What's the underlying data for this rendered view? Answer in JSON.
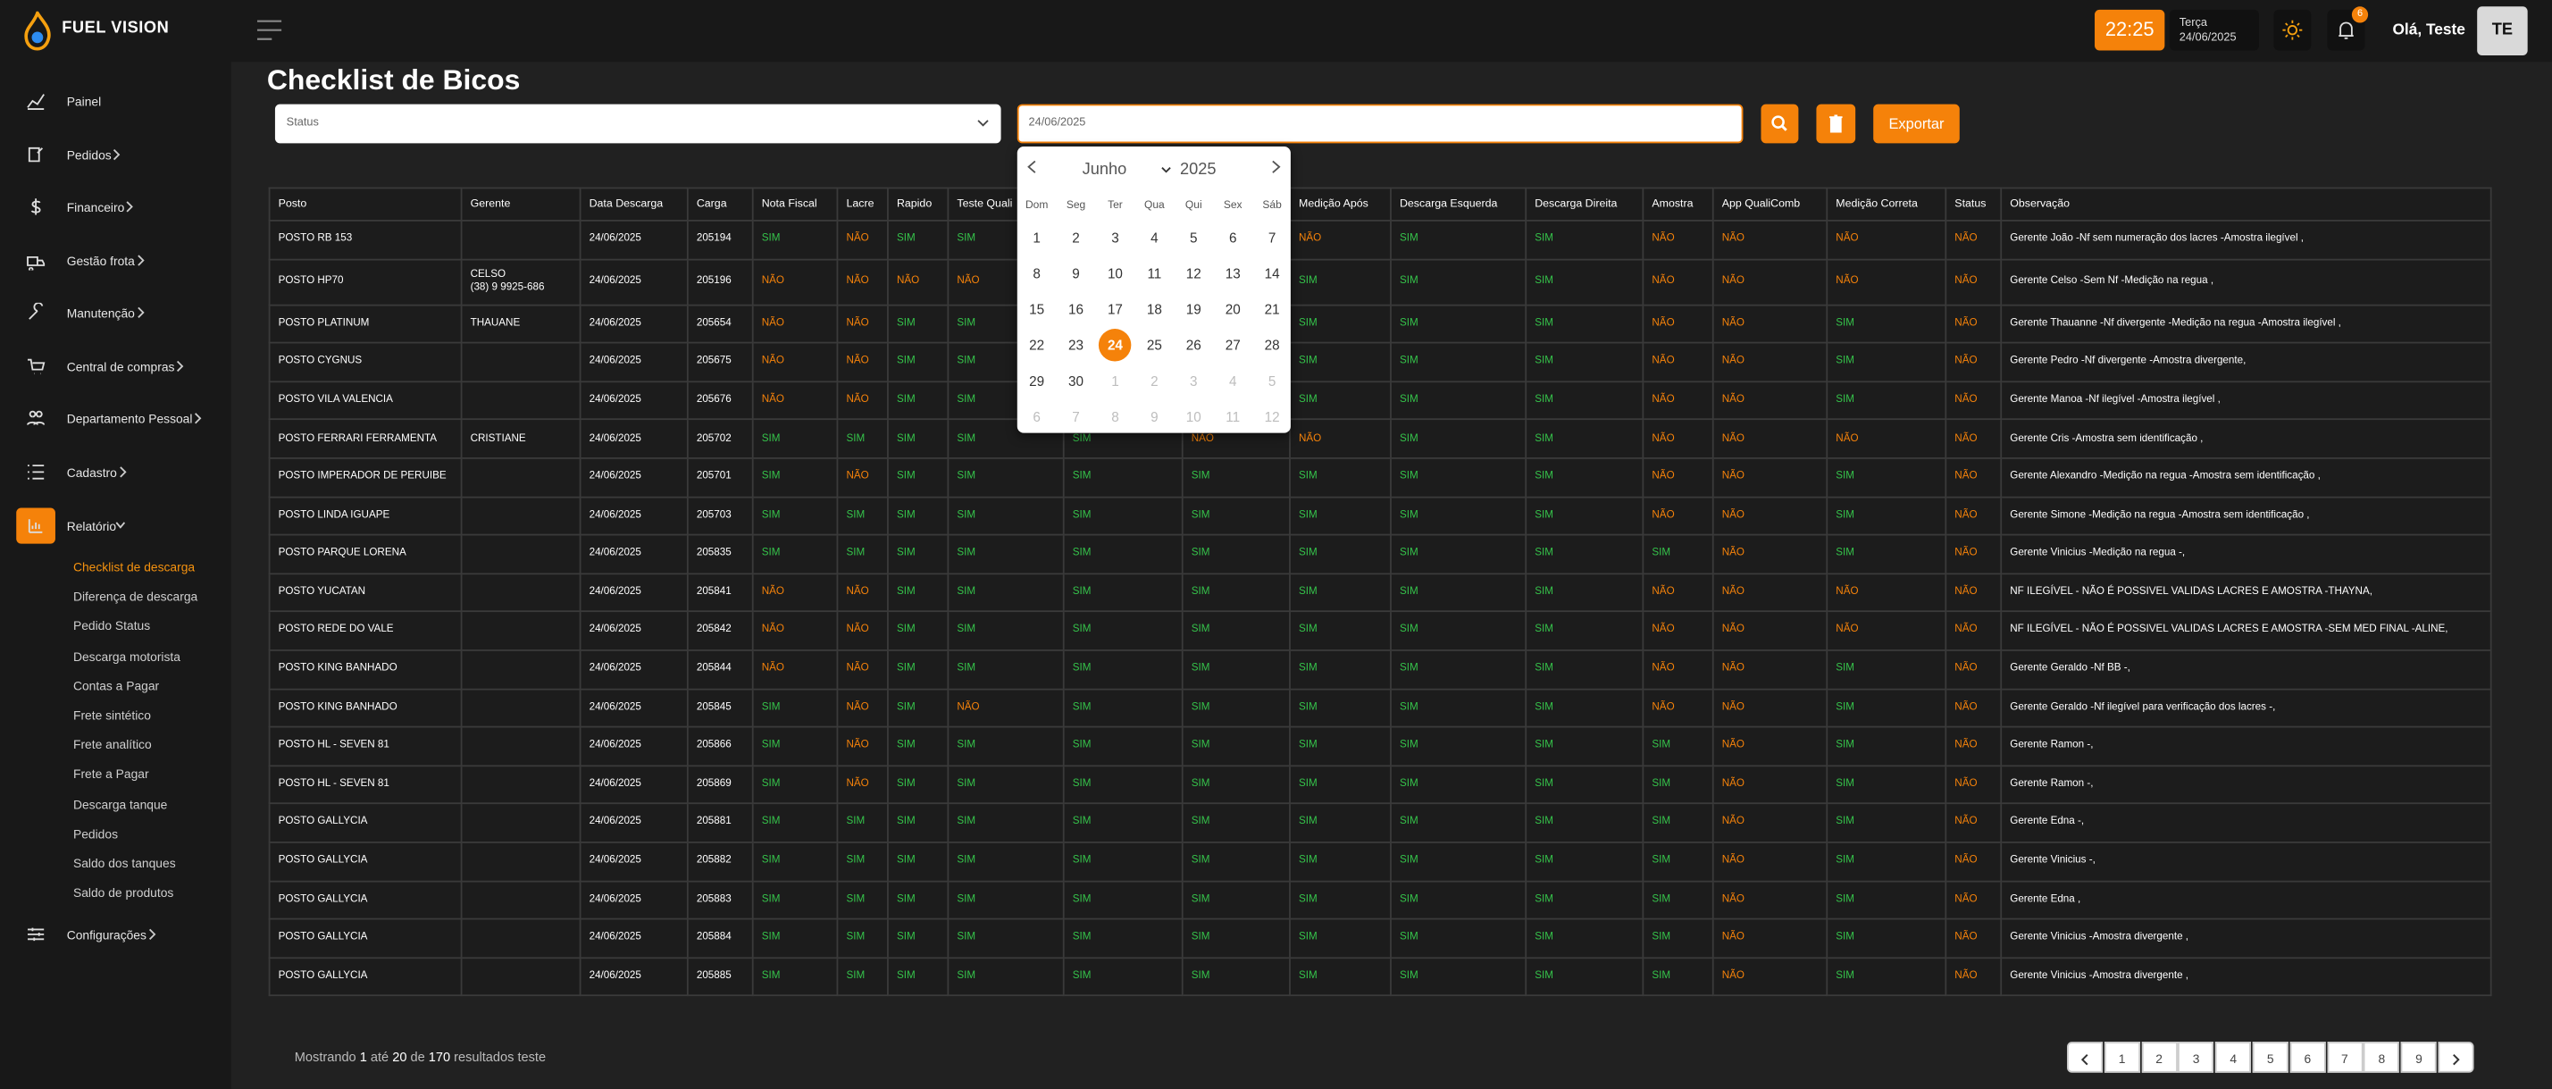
{
  "brand": "FUEL VISION",
  "header": {
    "time": "22:25",
    "weekday": "Terça",
    "date": "24/06/2025",
    "notifications": "6",
    "greeting": "Olá, Teste",
    "avatar": "TE"
  },
  "sidebar": {
    "items": [
      {
        "label": "Painel",
        "expandable": false
      },
      {
        "label": "Pedidos",
        "expandable": true
      },
      {
        "label": "Financeiro",
        "expandable": true
      },
      {
        "label": "Gestão frota",
        "expandable": true
      },
      {
        "label": "Manutenção",
        "expandable": true
      },
      {
        "label": "Central de compras",
        "expandable": true
      },
      {
        "label": "Departamento Pessoal",
        "expandable": true
      },
      {
        "label": "Cadastro",
        "expandable": true
      },
      {
        "label": "Relatório",
        "expandable": true,
        "active": true
      }
    ],
    "submenu": [
      {
        "label": "Checklist de descarga",
        "active": true
      },
      {
        "label": "Diferença de descarga"
      },
      {
        "label": "Pedido Status"
      },
      {
        "label": "Descarga motorista"
      },
      {
        "label": "Contas a Pagar"
      },
      {
        "label": "Frete sintético"
      },
      {
        "label": "Frete analítico"
      },
      {
        "label": "Frete a Pagar"
      },
      {
        "label": "Descarga tanque"
      },
      {
        "label": "Pedidos"
      },
      {
        "label": "Saldo dos tanques"
      },
      {
        "label": "Saldo de produtos"
      }
    ],
    "settings": "Configurações"
  },
  "page_title": "Checklist de Bicos",
  "filters": {
    "status_placeholder": "Status",
    "date": "24/06/2025",
    "export": "Exportar"
  },
  "calendar": {
    "month": "Junho",
    "year": "2025",
    "weekdays": [
      "Dom",
      "Seg",
      "Ter",
      "Qua",
      "Qui",
      "Sex",
      "Sáb"
    ],
    "days": [
      1,
      2,
      3,
      4,
      5,
      6,
      7,
      8,
      9,
      10,
      11,
      12,
      13,
      14,
      15,
      16,
      17,
      18,
      19,
      20,
      21,
      22,
      23,
      24,
      25,
      26,
      27,
      28,
      29,
      30
    ],
    "next_month_days": [
      1,
      2,
      3,
      4,
      5,
      6,
      7,
      8,
      9,
      10,
      11,
      12
    ],
    "selected_day": 24
  },
  "table": {
    "headers": [
      "Posto",
      "Gerente",
      "Data Descarga",
      "Carga",
      "Nota Fiscal",
      "Lacre",
      "Rapido",
      "Teste Quali",
      null,
      null,
      "Medição Após",
      "Descarga Esquerda",
      "Descarga Direita",
      "Amostra",
      "App QualiComb",
      "Medição Correta",
      "Status",
      "Observação"
    ],
    "rows": [
      [
        "POSTO RB 153",
        null,
        "24/06/2025",
        "205194",
        "SIM",
        "NÃO",
        "SIM",
        "SIM",
        null,
        null,
        "NÃO",
        "SIM",
        "SIM",
        "NÃO",
        "NÃO",
        "NÃO",
        "NÃO",
        "Gerente João -Nf sem numeração dos lacres -Amostra ilegível ,"
      ],
      [
        "POSTO HP70",
        "CELSO\n(38) 9 9925-686",
        "24/06/2025",
        "205196",
        "NÃO",
        "NÃO",
        "NÃO",
        "NÃO",
        null,
        null,
        "SIM",
        "SIM",
        "SIM",
        "NÃO",
        "NÃO",
        "NÃO",
        "NÃO",
        "Gerente Celso -Sem Nf -Medição na regua ,"
      ],
      [
        "POSTO PLATINUM",
        "THAUANE",
        "24/06/2025",
        "205654",
        "NÃO",
        "NÃO",
        "SIM",
        "SIM",
        null,
        null,
        "SIM",
        "SIM",
        "SIM",
        "NÃO",
        "NÃO",
        "SIM",
        "NÃO",
        "Gerente Thauanne -Nf divergente -Medição na regua -Amostra ilegível ,"
      ],
      [
        "POSTO CYGNUS",
        null,
        "24/06/2025",
        "205675",
        "NÃO",
        "NÃO",
        "SIM",
        "SIM",
        null,
        null,
        "SIM",
        "SIM",
        "SIM",
        "NÃO",
        "NÃO",
        "SIM",
        "NÃO",
        "Gerente Pedro -Nf divergente -Amostra divergente,"
      ],
      [
        "POSTO VILA VALENCIA",
        null,
        "24/06/2025",
        "205676",
        "NÃO",
        "NÃO",
        "SIM",
        "SIM",
        null,
        null,
        "SIM",
        "SIM",
        "SIM",
        "NÃO",
        "NÃO",
        "SIM",
        "NÃO",
        "Gerente Manoa -Nf ilegível -Amostra ilegível ,"
      ],
      [
        "POSTO FERRARI FERRAMENTA",
        "CRISTIANE",
        "24/06/2025",
        "205702",
        "SIM",
        "SIM",
        "SIM",
        "SIM",
        "SIM",
        "NÃO",
        "NÃO",
        "SIM",
        "SIM",
        "NÃO",
        "NÃO",
        "NÃO",
        "NÃO",
        "Gerente Cris -Amostra sem identificação ,"
      ],
      [
        "POSTO IMPERADOR DE PERUIBE",
        null,
        "24/06/2025",
        "205701",
        "SIM",
        "NÃO",
        "SIM",
        "SIM",
        "SIM",
        "SIM",
        "SIM",
        "SIM",
        "SIM",
        "NÃO",
        "NÃO",
        "SIM",
        "NÃO",
        "Gerente Alexandro -Medição na regua -Amostra sem identificação ,"
      ],
      [
        "POSTO LINDA IGUAPE",
        null,
        "24/06/2025",
        "205703",
        "SIM",
        "SIM",
        "SIM",
        "SIM",
        "SIM",
        "SIM",
        "SIM",
        "SIM",
        "SIM",
        "NÃO",
        "NÃO",
        "SIM",
        "NÃO",
        "Gerente Simone -Medição na regua -Amostra sem identificação ,"
      ],
      [
        "POSTO PARQUE LORENA",
        null,
        "24/06/2025",
        "205835",
        "SIM",
        "SIM",
        "SIM",
        "SIM",
        "SIM",
        "SIM",
        "SIM",
        "SIM",
        "SIM",
        "SIM",
        "NÃO",
        "SIM",
        "NÃO",
        "Gerente Vinicius -Medição na regua -,"
      ],
      [
        "POSTO YUCATAN",
        null,
        "24/06/2025",
        "205841",
        "NÃO",
        "NÃO",
        "SIM",
        "SIM",
        "SIM",
        "SIM",
        "SIM",
        "SIM",
        "SIM",
        "NÃO",
        "NÃO",
        "NÃO",
        "NÃO",
        "NF ILEGÍVEL - NÃO É POSSIVEL VALIDAS LACRES E AMOSTRA -THAYNA,"
      ],
      [
        "POSTO REDE DO VALE",
        null,
        "24/06/2025",
        "205842",
        "NÃO",
        "NÃO",
        "SIM",
        "SIM",
        "SIM",
        "SIM",
        "SIM",
        "SIM",
        "SIM",
        "NÃO",
        "NÃO",
        "NÃO",
        "NÃO",
        "NF ILEGÍVEL - NÃO É POSSIVEL VALIDAS LACRES E AMOSTRA -SEM MED FINAL -ALINE,"
      ],
      [
        "POSTO KING BANHADO",
        null,
        "24/06/2025",
        "205844",
        "NÃO",
        "NÃO",
        "SIM",
        "SIM",
        "SIM",
        "SIM",
        "SIM",
        "SIM",
        "SIM",
        "NÃO",
        "NÃO",
        "SIM",
        "NÃO",
        "Gerente Geraldo -Nf BB -,"
      ],
      [
        "POSTO KING BANHADO",
        null,
        "24/06/2025",
        "205845",
        "SIM",
        "NÃO",
        "SIM",
        "NÃO",
        "SIM",
        "SIM",
        "SIM",
        "SIM",
        "SIM",
        "NÃO",
        "NÃO",
        "SIM",
        "NÃO",
        "Gerente Geraldo -Nf ilegível para verificação dos lacres -,"
      ],
      [
        "POSTO HL - SEVEN 81",
        null,
        "24/06/2025",
        "205866",
        "SIM",
        "NÃO",
        "SIM",
        "SIM",
        "SIM",
        "SIM",
        "SIM",
        "SIM",
        "SIM",
        "SIM",
        "NÃO",
        "SIM",
        "NÃO",
        "Gerente Ramon -,"
      ],
      [
        "POSTO HL - SEVEN 81",
        null,
        "24/06/2025",
        "205869",
        "SIM",
        "NÃO",
        "SIM",
        "SIM",
        "SIM",
        "SIM",
        "SIM",
        "SIM",
        "SIM",
        "SIM",
        "NÃO",
        "SIM",
        "NÃO",
        "Gerente Ramon -,"
      ],
      [
        "POSTO GALLYCIA",
        null,
        "24/06/2025",
        "205881",
        "SIM",
        "SIM",
        "SIM",
        "SIM",
        "SIM",
        "SIM",
        "SIM",
        "SIM",
        "SIM",
        "SIM",
        "NÃO",
        "SIM",
        "NÃO",
        "Gerente Edna -,"
      ],
      [
        "POSTO GALLYCIA",
        null,
        "24/06/2025",
        "205882",
        "SIM",
        "SIM",
        "SIM",
        "SIM",
        "SIM",
        "SIM",
        "SIM",
        "SIM",
        "SIM",
        "SIM",
        "NÃO",
        "SIM",
        "NÃO",
        "Gerente Vinicius -,"
      ],
      [
        "POSTO GALLYCIA",
        null,
        "24/06/2025",
        "205883",
        "SIM",
        "SIM",
        "SIM",
        "SIM",
        "SIM",
        "SIM",
        "SIM",
        "SIM",
        "SIM",
        "SIM",
        "NÃO",
        "SIM",
        "NÃO",
        "Gerente Edna ,"
      ],
      [
        "POSTO GALLYCIA",
        null,
        "24/06/2025",
        "205884",
        "SIM",
        "SIM",
        "SIM",
        "SIM",
        "SIM",
        "SIM",
        "SIM",
        "SIM",
        "SIM",
        "SIM",
        "NÃO",
        "SIM",
        "NÃO",
        "Gerente Vinicius -Amostra divergente ,"
      ],
      [
        "POSTO GALLYCIA",
        null,
        "24/06/2025",
        "205885",
        "SIM",
        "SIM",
        "SIM",
        "SIM",
        "SIM",
        "SIM",
        "SIM",
        "SIM",
        "SIM",
        "SIM",
        "NÃO",
        "SIM",
        "NÃO",
        "Gerente Vinicius -Amostra divergente ,"
      ]
    ]
  },
  "footer": {
    "summary": [
      "Mostrando ",
      "1",
      " até ",
      "20",
      " de ",
      "170",
      " resultados teste"
    ]
  },
  "pagination": {
    "pages": [
      1,
      2,
      3,
      4,
      5,
      6,
      7,
      8,
      9
    ]
  }
}
